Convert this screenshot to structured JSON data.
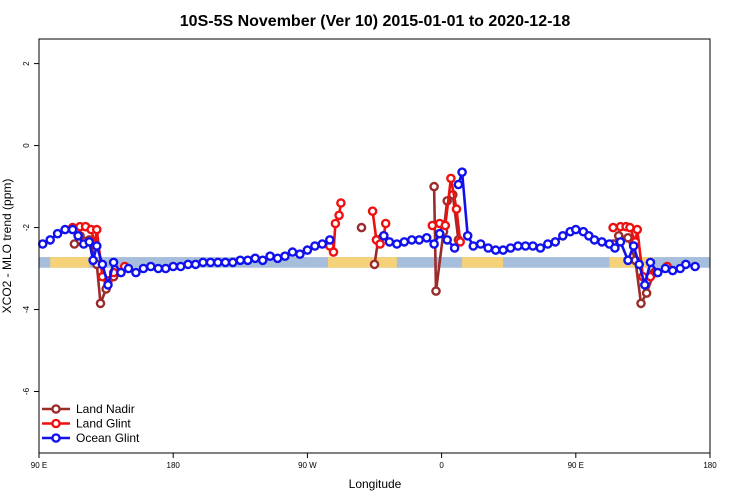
{
  "chart_data": {
    "type": "line",
    "title": "10S-5S November (Ver 10)   2015-01-01 to 2020-12-18",
    "xlabel": "Longitude",
    "ylabel": "XCO2 - MLO trend (ppm)",
    "xlim": [
      90,
      450
    ],
    "ylim": [
      -7.5,
      2.6
    ],
    "x_ticks": [
      {
        "value": 90,
        "label": "90 E"
      },
      {
        "value": 162,
        "label": "180"
      },
      {
        "value": 234,
        "label": "90 W"
      },
      {
        "value": 306,
        "label": "0"
      },
      {
        "value": 378,
        "label": "90 E"
      },
      {
        "value": 450,
        "label": "180"
      }
    ],
    "y_ticks": [
      {
        "value": 2,
        "label": "2"
      },
      {
        "value": 0,
        "label": "0"
      },
      {
        "value": -2,
        "label": "-2"
      },
      {
        "value": -4,
        "label": "-4"
      },
      {
        "value": -6,
        "label": "-6"
      }
    ],
    "band": {
      "y_center": -2.85,
      "half_height": 0.13,
      "color": "#a6bddb",
      "land_segments": [
        [
          96,
          117
        ],
        [
          245,
          282
        ],
        [
          317,
          339
        ],
        [
          396,
          420
        ]
      ],
      "land_color": "#f5d27a"
    },
    "legend": {
      "position": "bottom-left"
    },
    "series": [
      {
        "name": "Land Nadir",
        "color": "#9a2c2c",
        "segments": [
          [
            [
              109,
              -2.4
            ],
            [
              112,
              -2.2
            ],
            [
              117,
              -2.3
            ],
            [
              121,
              -2.9
            ],
            [
              123,
              -3.85
            ],
            [
              126,
              -3.5
            ],
            [
              130,
              -3.2
            ]
          ],
          [
            [
              263,
              -2.0
            ]
          ],
          [
            [
              270,
              -2.9
            ],
            [
              272,
              -2.3
            ]
          ],
          [
            [
              302,
              -1.0
            ],
            [
              303,
              -3.55
            ],
            [
              307,
              -2.1
            ],
            [
              309,
              -1.35
            ],
            [
              312,
              -1.2
            ],
            [
              315,
              -2.3
            ]
          ],
          [
            [
              398,
              -2.4
            ],
            [
              401,
              -2.2
            ],
            [
              406,
              -2.25
            ],
            [
              410,
              -2.8
            ],
            [
              413,
              -3.85
            ],
            [
              416,
              -3.6
            ],
            [
              420,
              -3.1
            ]
          ]
        ]
      },
      {
        "name": "Land Glint",
        "color": "#ee1111",
        "segments": [
          [
            [
              108,
              -2.0
            ],
            [
              112,
              -1.98
            ],
            [
              115,
              -1.98
            ],
            [
              118,
              -2.05
            ],
            [
              120,
              -2.4
            ],
            [
              121,
              -2.05
            ],
            [
              124,
              -3.2
            ],
            [
              127,
              -3.3
            ],
            [
              130,
              -3.1
            ],
            [
              136,
              -2.95
            ]
          ],
          [
            [
              246,
              -2.45
            ],
            [
              248,
              -2.6
            ],
            [
              249,
              -1.9
            ],
            [
              251,
              -1.7
            ],
            [
              252,
              -1.4
            ]
          ],
          [
            [
              269,
              -1.6
            ],
            [
              271,
              -2.3
            ],
            [
              273,
              -2.4
            ],
            [
              275,
              -2.2
            ],
            [
              276,
              -1.9
            ]
          ],
          [
            [
              301,
              -1.95
            ],
            [
              305,
              -1.9
            ],
            [
              308,
              -1.95
            ],
            [
              311,
              -0.8
            ],
            [
              314,
              -1.55
            ],
            [
              316,
              -2.35
            ]
          ],
          [
            [
              398,
              -2.0
            ],
            [
              402,
              -1.98
            ],
            [
              405,
              -1.98
            ],
            [
              407,
              -2.0
            ],
            [
              410,
              -2.35
            ],
            [
              411,
              -2.05
            ],
            [
              414,
              -3.2
            ],
            [
              418,
              -3.2
            ],
            [
              421,
              -3.1
            ],
            [
              427,
              -2.95
            ]
          ]
        ]
      },
      {
        "name": "Ocean Glint",
        "color": "#1111ee",
        "segments": [
          [
            [
              92,
              -2.4
            ],
            [
              96,
              -2.3
            ],
            [
              100,
              -2.15
            ],
            [
              104,
              -2.05
            ],
            [
              108,
              -2.05
            ],
            [
              111,
              -2.2
            ],
            [
              114,
              -2.4
            ],
            [
              117,
              -2.35
            ],
            [
              119,
              -2.8
            ],
            [
              121,
              -2.45
            ],
            [
              124,
              -2.9
            ],
            [
              127,
              -3.4
            ],
            [
              130,
              -2.85
            ],
            [
              134,
              -3.1
            ],
            [
              138,
              -3.0
            ],
            [
              142,
              -3.1
            ],
            [
              146,
              -3.0
            ],
            [
              150,
              -2.95
            ],
            [
              154,
              -3.0
            ],
            [
              158,
              -3.0
            ],
            [
              162,
              -2.95
            ],
            [
              166,
              -2.95
            ],
            [
              170,
              -2.9
            ],
            [
              174,
              -2.9
            ],
            [
              178,
              -2.85
            ],
            [
              182,
              -2.85
            ],
            [
              186,
              -2.85
            ],
            [
              190,
              -2.85
            ],
            [
              194,
              -2.85
            ],
            [
              198,
              -2.8
            ],
            [
              202,
              -2.8
            ],
            [
              206,
              -2.75
            ],
            [
              210,
              -2.8
            ],
            [
              214,
              -2.7
            ],
            [
              218,
              -2.75
            ],
            [
              222,
              -2.7
            ],
            [
              226,
              -2.6
            ],
            [
              230,
              -2.65
            ],
            [
              234,
              -2.55
            ],
            [
              238,
              -2.45
            ],
            [
              242,
              -2.4
            ],
            [
              246,
              -2.3
            ]
          ],
          [
            [
              275,
              -2.2
            ],
            [
              278,
              -2.35
            ],
            [
              282,
              -2.4
            ],
            [
              286,
              -2.35
            ],
            [
              290,
              -2.3
            ],
            [
              294,
              -2.3
            ],
            [
              298,
              -2.25
            ],
            [
              302,
              -2.4
            ],
            [
              305,
              -2.15
            ],
            [
              309,
              -2.3
            ],
            [
              313,
              -2.5
            ]
          ],
          [
            [
              315,
              -0.95
            ],
            [
              317,
              -0.65
            ],
            [
              320,
              -2.2
            ],
            [
              323,
              -2.45
            ],
            [
              327,
              -2.4
            ],
            [
              331,
              -2.5
            ],
            [
              335,
              -2.55
            ],
            [
              339,
              -2.55
            ],
            [
              343,
              -2.5
            ],
            [
              347,
              -2.45
            ],
            [
              351,
              -2.45
            ],
            [
              355,
              -2.45
            ],
            [
              359,
              -2.5
            ],
            [
              363,
              -2.4
            ],
            [
              367,
              -2.35
            ],
            [
              371,
              -2.2
            ],
            [
              375,
              -2.1
            ],
            [
              378,
              -2.05
            ],
            [
              382,
              -2.1
            ],
            [
              385,
              -2.2
            ],
            [
              388,
              -2.3
            ],
            [
              392,
              -2.35
            ],
            [
              396,
              -2.4
            ],
            [
              399,
              -2.5
            ],
            [
              402,
              -2.35
            ],
            [
              406,
              -2.8
            ],
            [
              409,
              -2.45
            ],
            [
              412,
              -2.9
            ],
            [
              415,
              -3.4
            ],
            [
              418,
              -2.85
            ],
            [
              422,
              -3.1
            ],
            [
              426,
              -3.0
            ],
            [
              430,
              -3.05
            ],
            [
              434,
              -3.0
            ],
            [
              437,
              -2.9
            ],
            [
              442,
              -2.95
            ]
          ]
        ]
      }
    ]
  }
}
